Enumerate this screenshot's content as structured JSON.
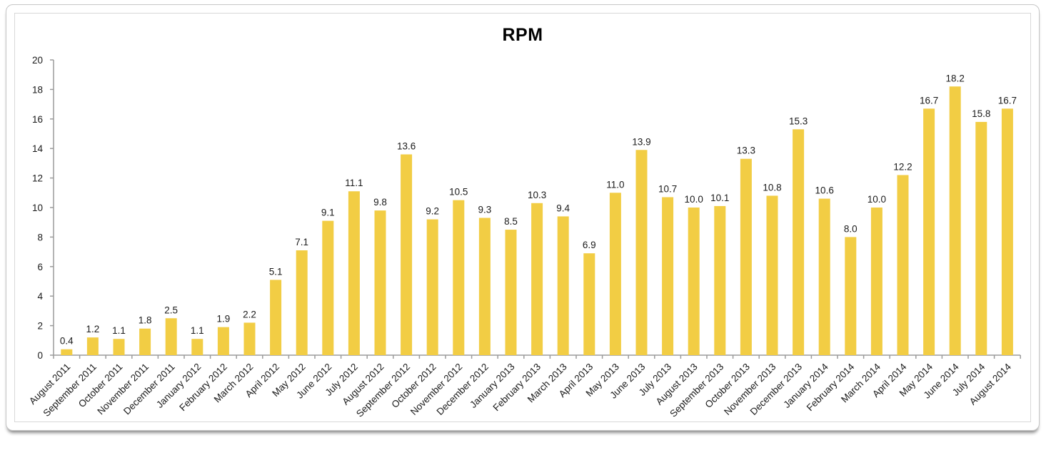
{
  "chart_data": {
    "type": "bar",
    "title": "RPM",
    "xlabel": "",
    "ylabel": "",
    "categories": [
      "August 2011",
      "September 2011",
      "October 2011",
      "November 2011",
      "December 2011",
      "January 2012",
      "February 2012",
      "March 2012",
      "April 2012",
      "May 2012",
      "June 2012",
      "July 2012",
      "August 2012",
      "September 2012",
      "October 2012",
      "November 2012",
      "December 2012",
      "January 2013",
      "February 2013",
      "March 2013",
      "April 2013",
      "May 2013",
      "June 2013",
      "July 2013",
      "August 2013",
      "September 2013",
      "October 2013",
      "November 2013",
      "December 2013",
      "January 2014",
      "February 2014",
      "March 2014",
      "April 2014",
      "May 2014",
      "June 2014",
      "July 2014",
      "August 2014"
    ],
    "values": [
      0.4,
      1.2,
      1.1,
      1.8,
      2.5,
      1.1,
      1.9,
      2.2,
      5.1,
      7.1,
      9.1,
      11.1,
      9.8,
      13.6,
      9.2,
      10.5,
      9.3,
      8.5,
      10.3,
      9.4,
      6.9,
      11.0,
      13.9,
      10.7,
      10.0,
      10.1,
      13.3,
      10.8,
      15.3,
      10.6,
      8.0,
      10.0,
      12.2,
      16.7,
      18.2,
      15.8,
      16.7
    ],
    "ylim": [
      0,
      20
    ],
    "yticks": [
      0,
      2,
      4,
      6,
      8,
      10,
      12,
      14,
      16,
      18,
      20
    ],
    "grid": false,
    "legend_position": "none",
    "bar_color": "#F2CD44",
    "axis_color": "#9b9b9b",
    "text_color": "#1a1a1a"
  }
}
